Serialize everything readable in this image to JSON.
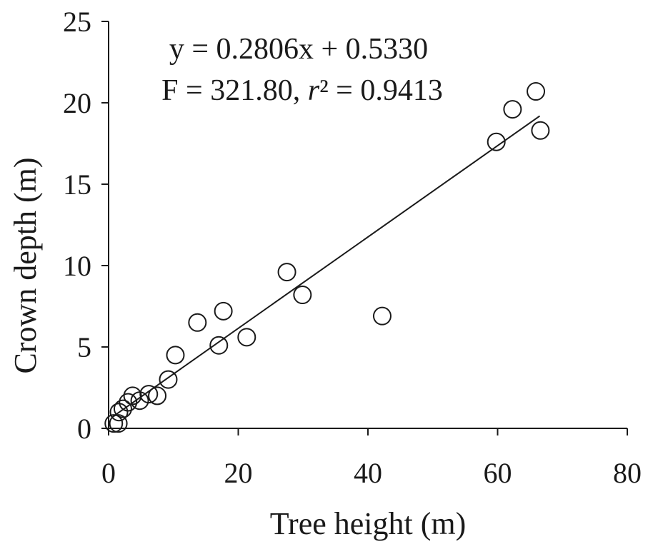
{
  "chart_data": {
    "type": "scatter",
    "xlabel": "Tree height (m)",
    "ylabel": "Crown depth (m)",
    "xlim": [
      0,
      80
    ],
    "ylim": [
      0,
      25
    ],
    "xticks": [
      0,
      20,
      40,
      60,
      80
    ],
    "yticks": [
      0,
      5,
      10,
      15,
      20,
      25
    ],
    "grid": false,
    "annotations": {
      "equation": "y = 0.2806x + 0.5330",
      "stats_prefix": "F = 321.80, ",
      "stats_r": "r",
      "stats_suffix": "² = 0.9413"
    },
    "regression": {
      "slope": 0.2806,
      "intercept": 0.533,
      "x_range": [
        1.0,
        66.5
      ]
    },
    "points": [
      {
        "x": 0.8,
        "y": 0.3
      },
      {
        "x": 1.5,
        "y": 0.3
      },
      {
        "x": 1.6,
        "y": 1.0
      },
      {
        "x": 2.2,
        "y": 1.2
      },
      {
        "x": 3.0,
        "y": 1.6
      },
      {
        "x": 3.7,
        "y": 2.0
      },
      {
        "x": 4.8,
        "y": 1.7
      },
      {
        "x": 6.2,
        "y": 2.1
      },
      {
        "x": 7.5,
        "y": 2.0
      },
      {
        "x": 9.2,
        "y": 3.0
      },
      {
        "x": 10.3,
        "y": 4.5
      },
      {
        "x": 13.7,
        "y": 6.5
      },
      {
        "x": 17.0,
        "y": 5.1
      },
      {
        "x": 17.7,
        "y": 7.2
      },
      {
        "x": 21.3,
        "y": 5.6
      },
      {
        "x": 27.5,
        "y": 9.6
      },
      {
        "x": 29.9,
        "y": 8.2
      },
      {
        "x": 42.2,
        "y": 6.9
      },
      {
        "x": 59.8,
        "y": 17.6
      },
      {
        "x": 62.3,
        "y": 19.6
      },
      {
        "x": 65.9,
        "y": 20.7
      },
      {
        "x": 66.6,
        "y": 18.3
      }
    ]
  }
}
